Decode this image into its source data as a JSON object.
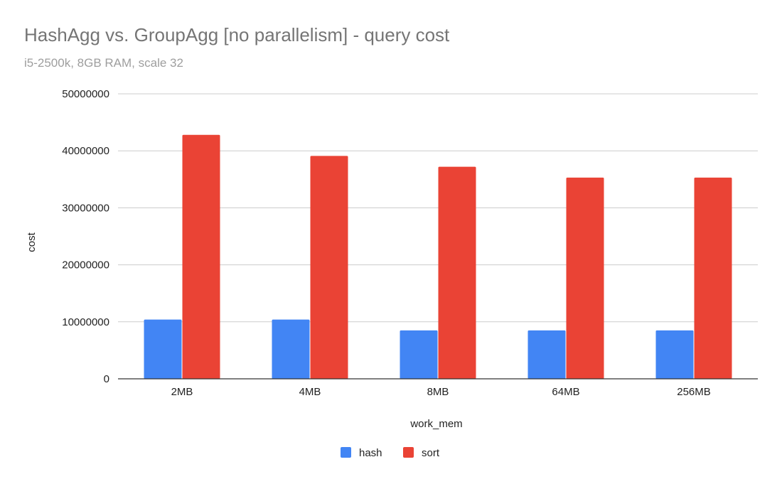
{
  "chart_data": {
    "type": "bar",
    "title": "HashAgg vs. GroupAgg [no parallelism] - query cost",
    "subtitle": "i5-2500k, 8GB RAM, scale 32",
    "xlabel": "work_mem",
    "ylabel": "cost",
    "categories": [
      "2MB",
      "4MB",
      "8MB",
      "64MB",
      "256MB"
    ],
    "series": [
      {
        "name": "hash",
        "color": "#4285F4",
        "values": [
          10400000,
          10400000,
          8500000,
          8500000,
          8500000
        ]
      },
      {
        "name": "sort",
        "color": "#EA4335",
        "values": [
          42800000,
          39100000,
          37200000,
          35300000,
          35300000
        ]
      }
    ],
    "yticks": [
      {
        "value": 0,
        "label": "0"
      },
      {
        "value": 10000000,
        "label": "10000000"
      },
      {
        "value": 20000000,
        "label": "20000000"
      },
      {
        "value": 30000000,
        "label": "30000000"
      },
      {
        "value": 40000000,
        "label": "40000000"
      },
      {
        "value": 50000000,
        "label": "50000000"
      }
    ],
    "ylim": [
      0,
      50000000
    ],
    "grid": true,
    "legend_position": "bottom"
  }
}
